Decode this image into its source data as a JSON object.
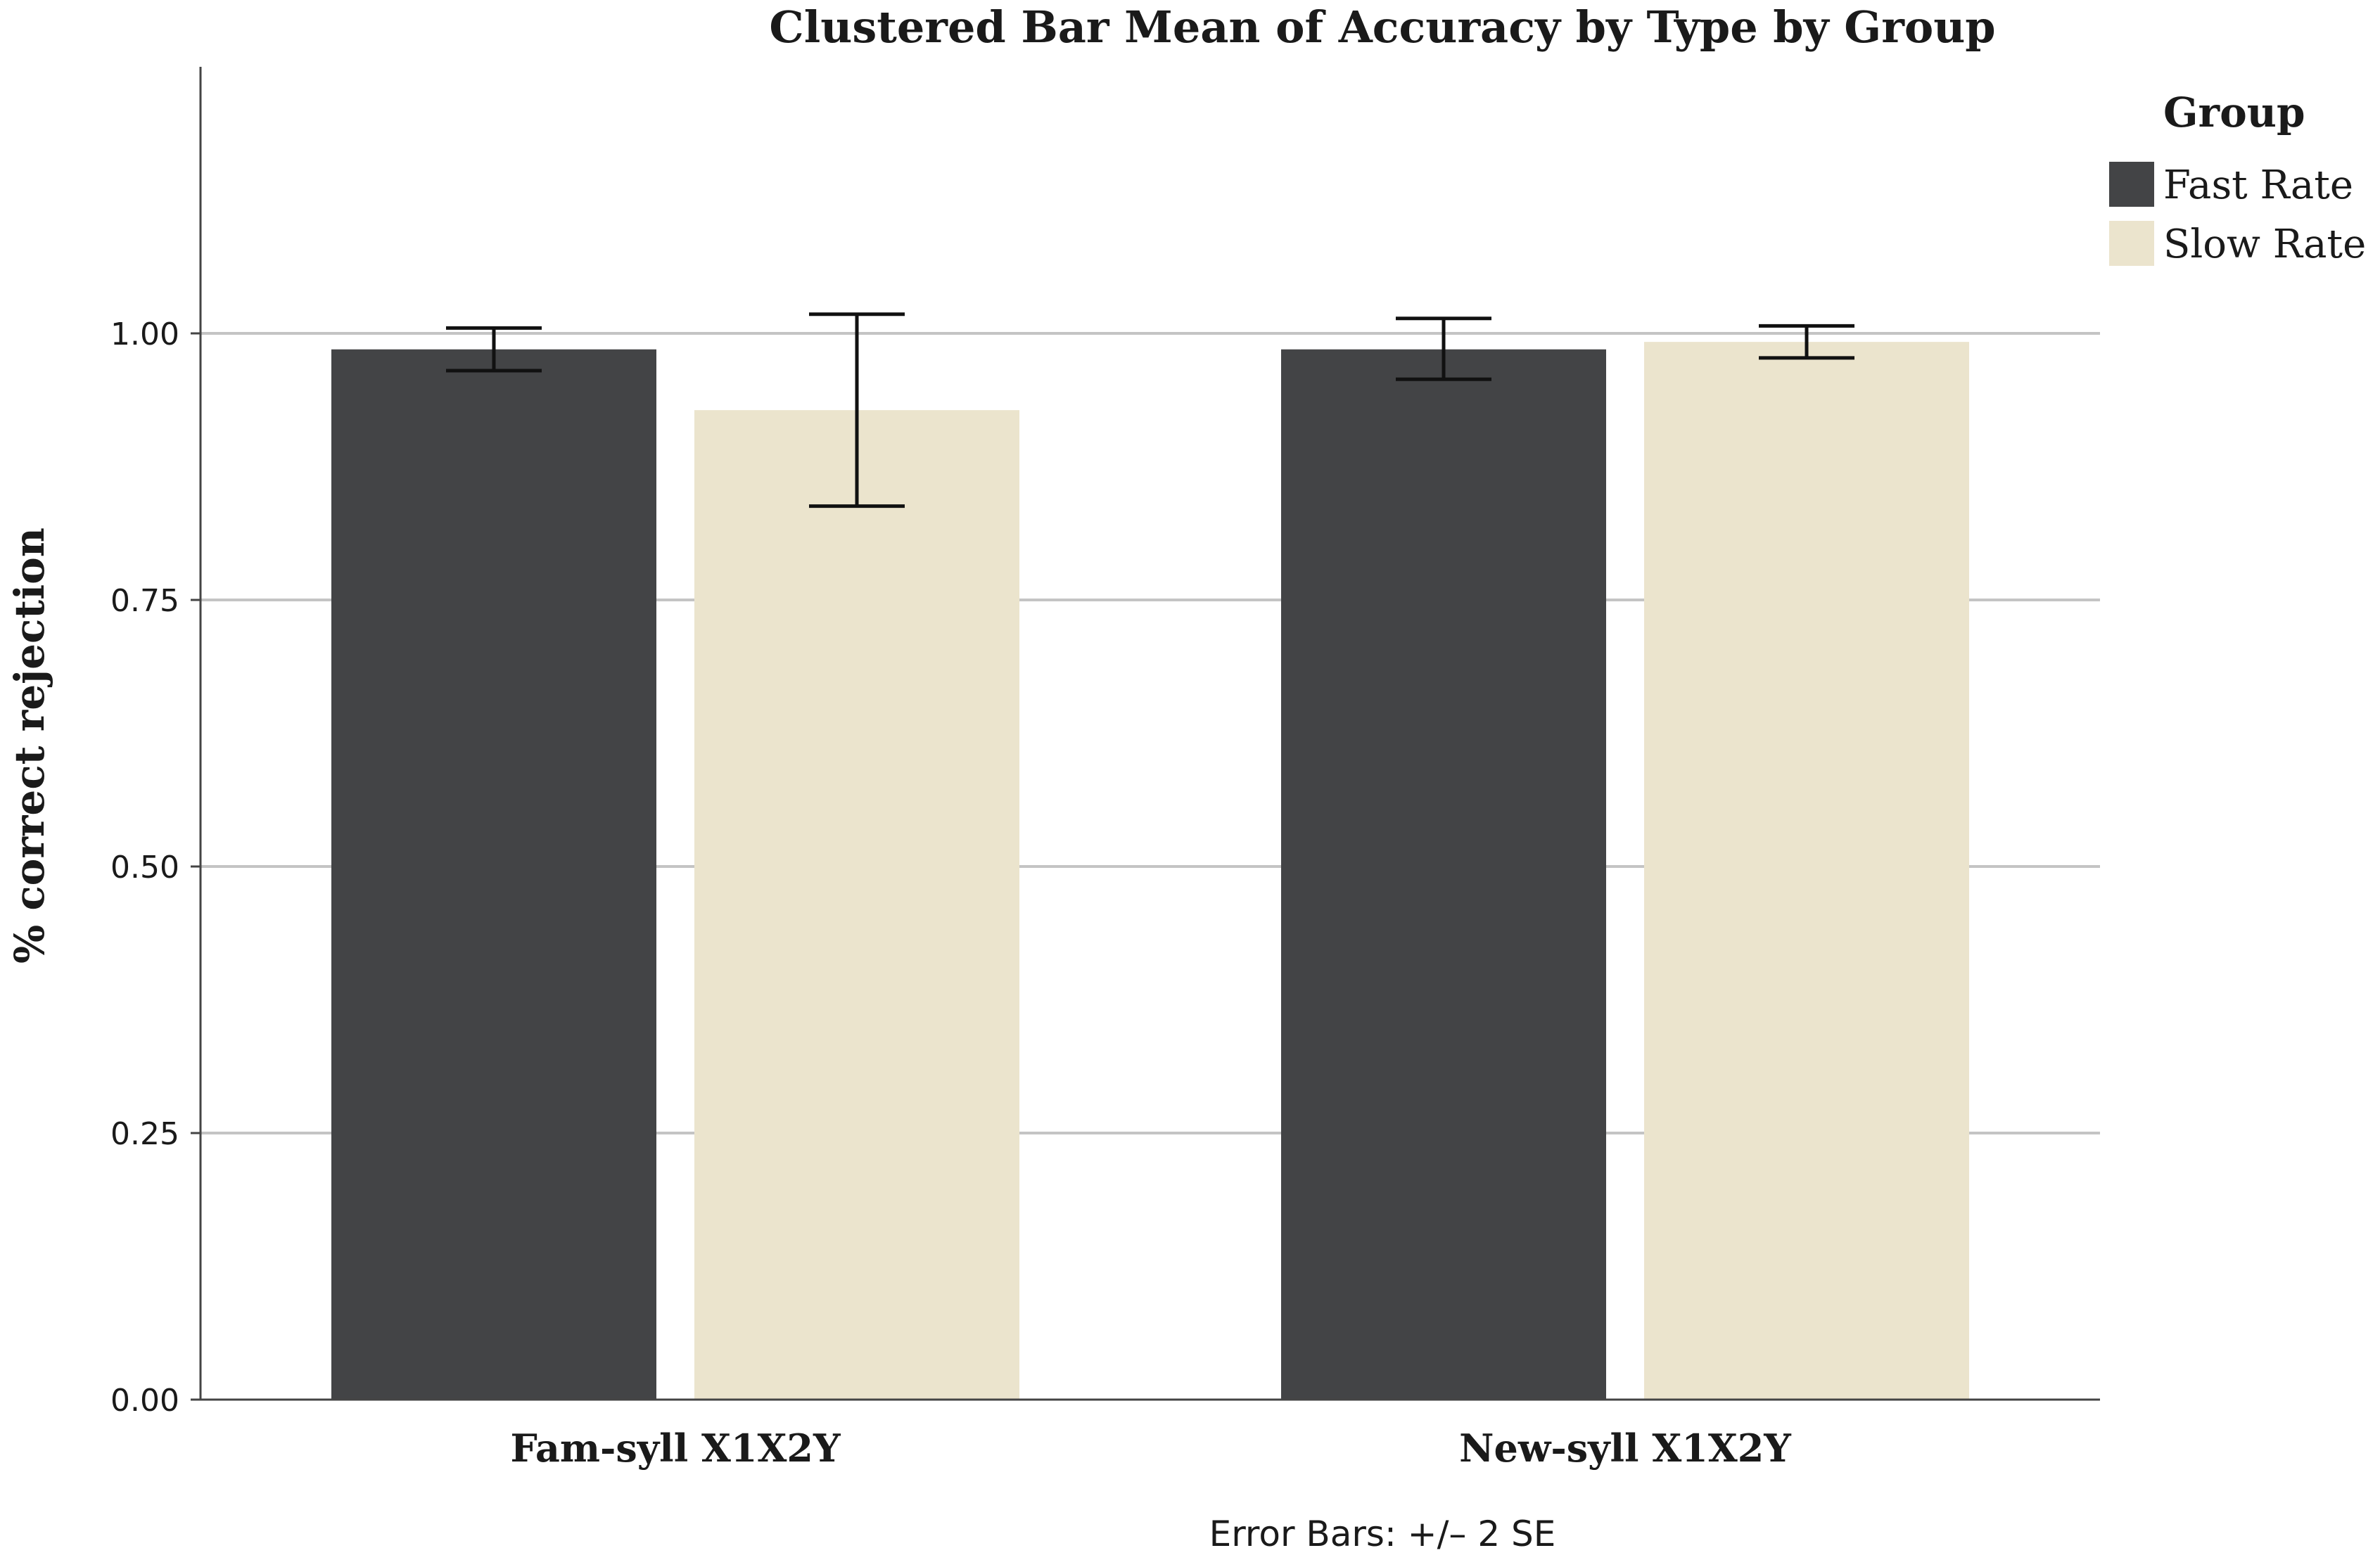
{
  "chart_data": {
    "type": "bar",
    "title": "Clustered Bar Mean of Accuracy by Type by Group",
    "xlabel": "",
    "ylabel": "% correct rejection",
    "ylim": [
      0,
      1.25
    ],
    "yticks": [
      "0.00",
      "0.25",
      "0.50",
      "0.75",
      "1.00"
    ],
    "ytick_values": [
      0,
      0.25,
      0.5,
      0.75,
      1.0
    ],
    "grid": true,
    "categories": [
      "Fam-syll X1X2Y",
      "New-syll X1X2Y"
    ],
    "series": [
      {
        "name": "Fast Rate",
        "color": "#434446",
        "values": [
          0.985,
          0.985
        ],
        "err_low": [
          0.965,
          0.957
        ],
        "err_high": [
          1.005,
          1.014
        ]
      },
      {
        "name": "Slow Rate",
        "color": "#ebe4cd",
        "values": [
          0.928,
          0.992
        ],
        "err_low": [
          0.838,
          0.977
        ],
        "err_high": [
          1.018,
          1.007
        ]
      }
    ],
    "legend": {
      "title": "Group",
      "position": "top-right"
    },
    "footnote": "Error Bars: +/– 2 SE"
  }
}
